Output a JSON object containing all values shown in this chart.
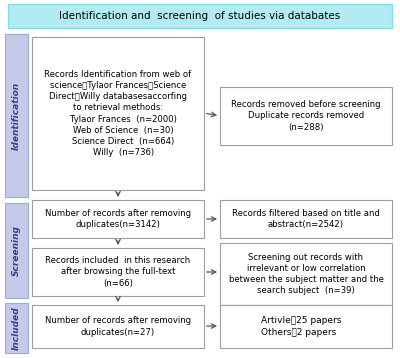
{
  "title": "Identification and  screening  of studies via databates",
  "title_bg": "#b2ebf2",
  "title_border": "#80deea",
  "sidebar_color": "#c5cae9",
  "sidebar_border": "#9fa8da",
  "box_border": "#9e9e9e",
  "box_fill": "#ffffff",
  "arrow_color": "#555555",
  "id_main_text": "Records Identification from web of\nscience，Tylaor Frances，Science\nDirect，Willy databasesaccorfing\nto retrieval methods:\n    Tylaor Frances  (n=2000)\n    Web of Science  (n=30)\n    Science Direct  (n=664)\n    Willy  (n=736)",
  "id_right_text": "Records removed before screening\nDuplicate records removed\n(n=288)",
  "sc_main1_text": "Number of records after removing\nduplicates(n=3142)",
  "sc_right1_text": "Records filtered based on title and\nabstract(n=2542)",
  "sc_main2_text": "Records included  in this research\nafter browsing the full-text\n(n=66)",
  "sc_right2_text": "Screening out records with\nirrelevant or low correlation\nbetween the subject matter and the\nsearch subject  (n=39)",
  "inc_main_text": "Number of records after removing\nduplicates(n=27)",
  "inc_right_text": "Artivle：25 papers\nOthers：2 papers",
  "label_identification": "Identification",
  "label_screening": "Screening",
  "label_included": "Included"
}
